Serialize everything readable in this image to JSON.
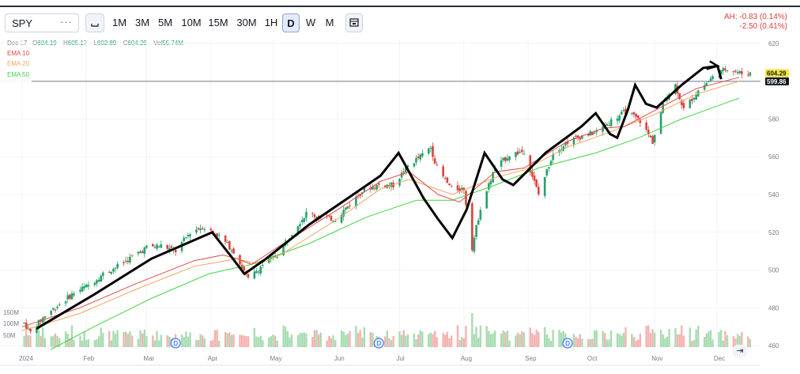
{
  "toolbar": {
    "symbol": "SPY",
    "more": "···",
    "chart_type_icon": "candles-icon",
    "timeframes": [
      "1M",
      "3M",
      "5M",
      "10M",
      "15M",
      "30M",
      "1H",
      "D",
      "W",
      "M"
    ],
    "active_timeframe": "D",
    "calendar_icon": "calendar-icon"
  },
  "after_hours": {
    "line1": "AH: -0.83 (0.14%)",
    "line2": "-2.50 (0.41%)"
  },
  "ohlc": {
    "date": "Dec 17",
    "o_label": "O",
    "o": "604.19",
    "h_label": "H",
    "h": "605.17",
    "l_label": "L",
    "l": "602.89",
    "c_label": "C",
    "c": "604.29",
    "vol_label": "Vol",
    "vol": "55.74M"
  },
  "legend": [
    {
      "name": "EMA 10",
      "color": "#e04b4b"
    },
    {
      "name": "EMA 20",
      "color": "#f4a460"
    },
    {
      "name": "EMA 50",
      "color": "#44d444"
    }
  ],
  "price_tags": {
    "last": "604.29",
    "last_bg": "#f7e43c",
    "ref": "599.86",
    "ref_bg": "#131722"
  },
  "colors": {
    "up": "#26a269",
    "down": "#e0403a",
    "vol_up": "#a9dcb2",
    "vol_down": "#f4b3b0",
    "drawing": "#000000"
  },
  "dividend_marker": "D",
  "goto_realtime_icon": "arrow-to-end-icon",
  "chart_data": {
    "type": "candlestick",
    "y_ticks": [
      620,
      600,
      580,
      560,
      540,
      520,
      500,
      480,
      460
    ],
    "ylim": [
      458,
      622
    ],
    "x_ticks": [
      "2024",
      "Feb",
      "Mar",
      "Apr",
      "May",
      "Jun",
      "Jul",
      "Aug",
      "Sep",
      "Oct",
      "Nov",
      "Dec"
    ],
    "volume_ticks": [
      "150M",
      "100M",
      "50M"
    ],
    "reference_line": 599.86,
    "last_price": 604.29,
    "dividend_months": [
      "Mar",
      "Jun",
      "Sep"
    ],
    "price_path": [
      [
        "2024-01-02",
        472
      ],
      [
        "2024-01-05",
        467
      ],
      [
        "2024-01-12",
        476
      ],
      [
        "2024-01-19",
        482
      ],
      [
        "2024-01-26",
        488
      ],
      [
        "2024-02-02",
        492
      ],
      [
        "2024-02-09",
        498
      ],
      [
        "2024-02-16",
        502
      ],
      [
        "2024-02-23",
        507
      ],
      [
        "2024-03-01",
        512
      ],
      [
        "2024-03-08",
        513
      ],
      [
        "2024-03-15",
        510
      ],
      [
        "2024-03-22",
        520
      ],
      [
        "2024-03-28",
        523
      ],
      [
        "2024-04-05",
        518
      ],
      [
        "2024-04-12",
        510
      ],
      [
        "2024-04-19",
        495
      ],
      [
        "2024-04-26",
        503
      ],
      [
        "2024-05-03",
        508
      ],
      [
        "2024-05-10",
        520
      ],
      [
        "2024-05-17",
        530
      ],
      [
        "2024-05-24",
        528
      ],
      [
        "2024-05-31",
        527
      ],
      [
        "2024-06-07",
        535
      ],
      [
        "2024-06-14",
        543
      ],
      [
        "2024-06-21",
        545
      ],
      [
        "2024-06-28",
        545
      ],
      [
        "2024-07-05",
        555
      ],
      [
        "2024-07-12",
        561
      ],
      [
        "2024-07-16",
        565
      ],
      [
        "2024-07-19",
        554
      ],
      [
        "2024-07-26",
        543
      ],
      [
        "2024-08-01",
        543
      ],
      [
        "2024-08-05",
        512
      ],
      [
        "2024-08-09",
        533
      ],
      [
        "2024-08-16",
        554
      ],
      [
        "2024-08-23",
        561
      ],
      [
        "2024-08-30",
        563
      ],
      [
        "2024-09-06",
        540
      ],
      [
        "2024-09-13",
        562
      ],
      [
        "2024-09-20",
        568
      ],
      [
        "2024-09-27",
        571
      ],
      [
        "2024-10-04",
        573
      ],
      [
        "2024-10-11",
        579
      ],
      [
        "2024-10-18",
        584
      ],
      [
        "2024-10-25",
        579
      ],
      [
        "2024-10-31",
        568
      ],
      [
        "2024-11-06",
        591
      ],
      [
        "2024-11-11",
        598
      ],
      [
        "2024-11-15",
        585
      ],
      [
        "2024-11-22",
        595
      ],
      [
        "2024-11-29",
        602
      ],
      [
        "2024-12-06",
        607
      ],
      [
        "2024-12-13",
        604
      ],
      [
        "2024-12-17",
        604.29
      ]
    ],
    "ema10": [
      [
        0,
        470
      ],
      [
        0.08,
        480
      ],
      [
        0.16,
        493
      ],
      [
        0.24,
        505
      ],
      [
        0.28,
        508
      ],
      [
        0.3,
        506
      ],
      [
        0.32,
        503
      ],
      [
        0.36,
        513
      ],
      [
        0.44,
        532
      ],
      [
        0.5,
        547
      ],
      [
        0.54,
        552
      ],
      [
        0.58,
        540
      ],
      [
        0.61,
        536
      ],
      [
        0.66,
        552
      ],
      [
        0.7,
        554
      ],
      [
        0.76,
        568
      ],
      [
        0.81,
        575
      ],
      [
        0.84,
        576
      ],
      [
        0.88,
        584
      ],
      [
        0.94,
        596
      ],
      [
        1,
        602
      ]
    ],
    "ema20": [
      [
        0,
        468
      ],
      [
        0.08,
        477
      ],
      [
        0.16,
        490
      ],
      [
        0.24,
        502
      ],
      [
        0.3,
        506
      ],
      [
        0.33,
        503
      ],
      [
        0.36,
        508
      ],
      [
        0.44,
        527
      ],
      [
        0.5,
        543
      ],
      [
        0.54,
        548
      ],
      [
        0.6,
        540
      ],
      [
        0.66,
        549
      ],
      [
        0.7,
        553
      ],
      [
        0.76,
        565
      ],
      [
        0.82,
        573
      ],
      [
        0.88,
        582
      ],
      [
        0.94,
        593
      ],
      [
        1,
        600
      ]
    ],
    "ema50": [
      [
        0.04,
        458
      ],
      [
        0.1,
        470
      ],
      [
        0.18,
        485
      ],
      [
        0.26,
        498
      ],
      [
        0.32,
        503
      ],
      [
        0.4,
        514
      ],
      [
        0.48,
        528
      ],
      [
        0.55,
        537
      ],
      [
        0.6,
        537
      ],
      [
        0.66,
        545
      ],
      [
        0.72,
        554
      ],
      [
        0.8,
        562
      ],
      [
        0.86,
        570
      ],
      [
        0.92,
        580
      ],
      [
        1,
        591
      ]
    ],
    "drawing_path": [
      [
        0.02,
        469
      ],
      [
        0.1,
        487
      ],
      [
        0.18,
        506
      ],
      [
        0.265,
        520
      ],
      [
        0.29,
        508
      ],
      [
        0.31,
        498
      ],
      [
        0.34,
        506
      ],
      [
        0.4,
        524
      ],
      [
        0.45,
        537
      ],
      [
        0.5,
        550
      ],
      [
        0.525,
        562
      ],
      [
        0.56,
        538
      ],
      [
        0.58,
        527
      ],
      [
        0.6,
        517
      ],
      [
        0.62,
        532
      ],
      [
        0.645,
        562
      ],
      [
        0.67,
        548
      ],
      [
        0.685,
        545
      ],
      [
        0.73,
        562
      ],
      [
        0.78,
        576
      ],
      [
        0.8,
        583
      ],
      [
        0.82,
        572
      ],
      [
        0.83,
        570
      ],
      [
        0.845,
        585
      ],
      [
        0.855,
        598
      ],
      [
        0.87,
        588
      ],
      [
        0.885,
        586
      ],
      [
        0.92,
        598
      ],
      [
        0.95,
        607
      ],
      [
        0.97,
        608
      ],
      [
        0.975,
        601
      ]
    ]
  }
}
